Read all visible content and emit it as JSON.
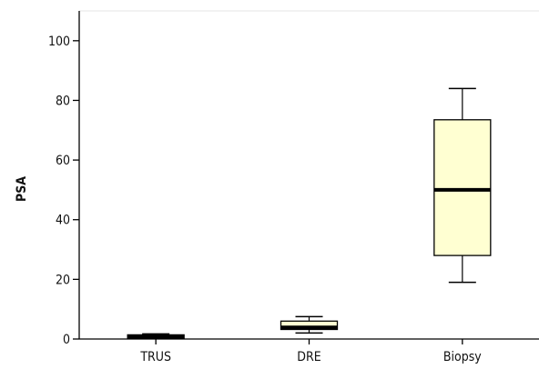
{
  "chart_data": {
    "type": "box",
    "title": "",
    "xlabel": "",
    "ylabel": "PSA",
    "ylim": [
      0,
      110
    ],
    "yticks": [
      "0",
      "20",
      "40",
      "60",
      "80",
      "100"
    ],
    "categories": [
      "TRUS",
      "DRE",
      "Biopsy"
    ],
    "boxes": [
      {
        "category": "TRUS",
        "min": 0.3,
        "q1": 0.3,
        "median": 0.8,
        "q3": 1.4,
        "max": 1.7
      },
      {
        "category": "DRE",
        "min": 2.0,
        "q1": 3.2,
        "median": 3.9,
        "q3": 6.0,
        "max": 7.5
      },
      {
        "category": "Biopsy",
        "min": 19.0,
        "q1": 28.0,
        "median": 50.0,
        "q3": 73.5,
        "max": 84.0
      }
    ],
    "grid": false,
    "box_fill": "#ffffd2",
    "box_stroke": "#000000"
  }
}
